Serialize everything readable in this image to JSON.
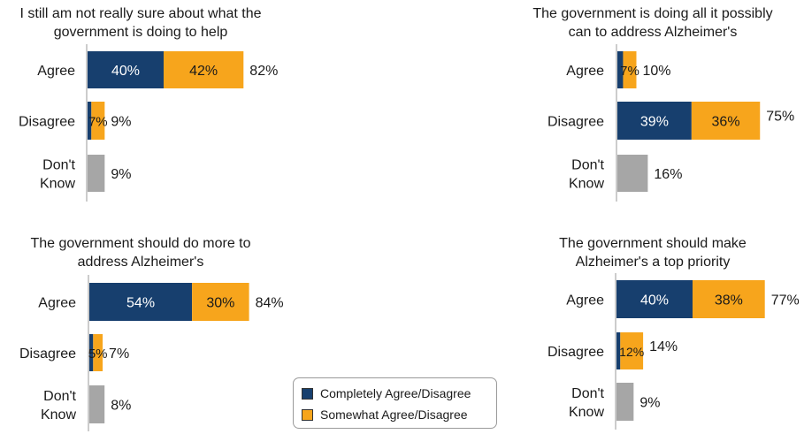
{
  "colors": {
    "completely": "#173f6e",
    "somewhat": "#f7a51c",
    "dont_know": "#a6a6a6",
    "axis": "#9a9a9a"
  },
  "legend": {
    "completely_label": "Completely Agree/Disagree",
    "somewhat_label": "Somewhat Agree/Disagree"
  },
  "chart_data": [
    {
      "type": "bar",
      "orientation": "horizontal",
      "stacked": true,
      "title": "I still am not really sure about what the government is doing to help",
      "title_lines": [
        "I still am not really sure about what the",
        "government is doing to help"
      ],
      "categories": [
        "Agree",
        "Disagree",
        "Don't Know"
      ],
      "category_lines": [
        [
          "Agree"
        ],
        [
          "Disagree"
        ],
        [
          "Don't",
          "Know"
        ]
      ],
      "series": [
        {
          "name": "Completely Agree/Disagree",
          "values": [
            40,
            2,
            null
          ],
          "labels": [
            "40%",
            "",
            ""
          ]
        },
        {
          "name": "Somewhat Agree/Disagree",
          "values": [
            42,
            7,
            null
          ],
          "labels": [
            "42%",
            "7%",
            ""
          ]
        },
        {
          "name": "",
          "values": [
            null,
            null,
            9
          ],
          "labels": [
            "",
            "",
            ""
          ]
        }
      ],
      "totals": [
        "82%",
        "9%",
        "9%"
      ],
      "xlim": [
        0,
        100
      ]
    },
    {
      "type": "bar",
      "orientation": "horizontal",
      "stacked": true,
      "title": "The government is doing all it possibly can to address Alzheimer's",
      "title_lines": [
        "The government is doing all it possibly",
        "can to address Alzheimer's"
      ],
      "categories": [
        "Agree",
        "Disagree",
        "Don't Know"
      ],
      "category_lines": [
        [
          "Agree"
        ],
        [
          "Disagree"
        ],
        [
          "Don't",
          "Know"
        ]
      ],
      "series": [
        {
          "name": "Completely Agree/Disagree",
          "values": [
            3,
            39,
            null
          ],
          "labels": [
            "",
            "39%",
            ""
          ]
        },
        {
          "name": "Somewhat Agree/Disagree",
          "values": [
            7,
            36,
            null
          ],
          "labels": [
            "7%",
            "36%",
            ""
          ]
        },
        {
          "name": "",
          "values": [
            null,
            null,
            16
          ],
          "labels": [
            "",
            "",
            ""
          ]
        }
      ],
      "totals": [
        "10%",
        "75%",
        "16%"
      ],
      "xlim": [
        0,
        100
      ]
    },
    {
      "type": "bar",
      "orientation": "horizontal",
      "stacked": true,
      "title": "The government should do more to address Alzheimer's",
      "title_lines": [
        "The government should do more to",
        "address Alzheimer's"
      ],
      "categories": [
        "Agree",
        "Disagree",
        "Don't Know"
      ],
      "category_lines": [
        [
          "Agree"
        ],
        [
          "Disagree"
        ],
        [
          "Don't",
          "Know"
        ]
      ],
      "series": [
        {
          "name": "Completely Agree/Disagree",
          "values": [
            54,
            2,
            null
          ],
          "labels": [
            "54%",
            "",
            ""
          ]
        },
        {
          "name": "Somewhat Agree/Disagree",
          "values": [
            30,
            5,
            null
          ],
          "labels": [
            "30%",
            "5%",
            ""
          ]
        },
        {
          "name": "",
          "values": [
            null,
            null,
            8
          ],
          "labels": [
            "",
            "",
            ""
          ]
        }
      ],
      "totals": [
        "84%",
        "7%",
        "8%"
      ],
      "xlim": [
        0,
        100
      ]
    },
    {
      "type": "bar",
      "orientation": "horizontal",
      "stacked": true,
      "title": "The government should make Alzheimer's a top priority",
      "title_lines": [
        "The government should make",
        "Alzheimer's a top priority"
      ],
      "categories": [
        "Agree",
        "Disagree",
        "Don't Know"
      ],
      "category_lines": [
        [
          "Agree"
        ],
        [
          "Disagree"
        ],
        [
          "Don't",
          "Know"
        ]
      ],
      "series": [
        {
          "name": "Completely Agree/Disagree",
          "values": [
            40,
            2,
            null
          ],
          "labels": [
            "40%",
            "",
            ""
          ]
        },
        {
          "name": "Somewhat Agree/Disagree",
          "values": [
            38,
            12,
            null
          ],
          "labels": [
            "38%",
            "12%",
            ""
          ]
        },
        {
          "name": "",
          "values": [
            null,
            null,
            9
          ],
          "labels": [
            "",
            "",
            ""
          ]
        }
      ],
      "totals": [
        "77%",
        "14%",
        "9%"
      ],
      "xlim": [
        0,
        100
      ]
    }
  ]
}
